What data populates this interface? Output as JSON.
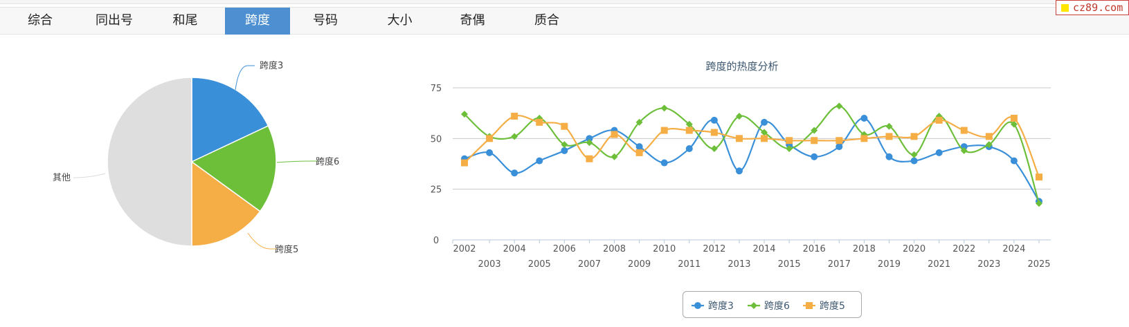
{
  "watermark": "cz89.com",
  "tabs": [
    {
      "label": "综合",
      "active": false
    },
    {
      "label": "同出号",
      "active": false
    },
    {
      "label": "和尾",
      "active": false
    },
    {
      "label": "跨度",
      "active": true
    },
    {
      "label": "号码",
      "active": false
    },
    {
      "label": "大小",
      "active": false
    },
    {
      "label": "奇偶",
      "active": false
    },
    {
      "label": "质合",
      "active": false
    }
  ],
  "chart_data": [
    {
      "type": "pie",
      "slices": [
        {
          "label": "跨度3",
          "value": 18,
          "color": "#3a8fd9"
        },
        {
          "label": "跨度6",
          "value": 17,
          "color": "#6dbf3a"
        },
        {
          "label": "跨度5",
          "value": 15,
          "color": "#f5ad45"
        },
        {
          "label": "其他",
          "value": 50,
          "color": "#dedede"
        }
      ]
    },
    {
      "type": "line",
      "title": "跨度的热度分析",
      "xlabel": "",
      "ylabel": "",
      "ylim": [
        0,
        75
      ],
      "yticks": [
        0,
        25,
        50,
        75
      ],
      "grid": true,
      "legend": "bottom",
      "smooth": true,
      "x": [
        "2002",
        "2003",
        "2004",
        "2005",
        "2006",
        "2007",
        "2008",
        "2009",
        "2010",
        "2011",
        "2012",
        "2013",
        "2014",
        "2015",
        "2016",
        "2017",
        "2018",
        "2019",
        "2020",
        "2021",
        "2022",
        "2023",
        "2024",
        "2025"
      ],
      "series": [
        {
          "name": "跨度3",
          "color": "#3a8fd9",
          "marker": "circle",
          "values": [
            40,
            43,
            33,
            39,
            44,
            50,
            54,
            46,
            38,
            45,
            59,
            34,
            58,
            47,
            41,
            46,
            60,
            41,
            39,
            43,
            46,
            46,
            39,
            19
          ]
        },
        {
          "name": "跨度6",
          "color": "#6dbf3a",
          "marker": "diamond",
          "values": [
            62,
            51,
            51,
            60,
            47,
            48,
            41,
            58,
            65,
            57,
            45,
            61,
            53,
            45,
            54,
            66,
            52,
            56,
            42,
            61,
            44,
            47,
            57,
            18
          ]
        },
        {
          "name": "跨度5",
          "color": "#f5ad45",
          "marker": "square",
          "values": [
            38,
            50,
            61,
            58,
            56,
            40,
            52,
            43,
            54,
            54,
            53,
            50,
            50,
            49,
            49,
            49,
            50,
            51,
            51,
            59,
            54,
            51,
            60,
            31
          ]
        }
      ]
    }
  ]
}
